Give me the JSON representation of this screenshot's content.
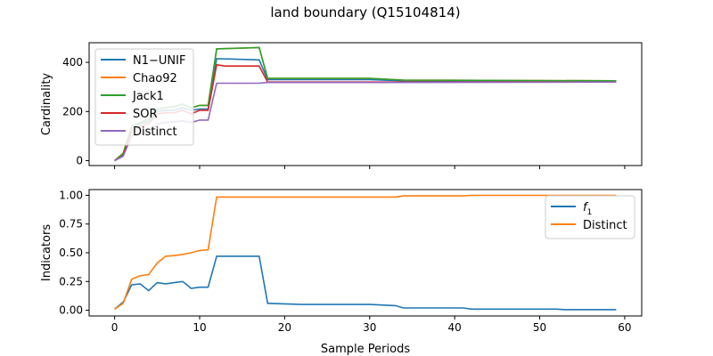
{
  "figure": {
    "title": "land boundary (Q15104814)",
    "xlabel": "Sample Periods"
  },
  "chart_data": [
    {
      "type": "line",
      "ylabel": "Cardinality",
      "xlim": [
        -3,
        62
      ],
      "ylim": [
        -20,
        480
      ],
      "xticks": [
        0,
        10,
        20,
        30,
        40,
        50,
        60
      ],
      "yticks": [
        0,
        200,
        400
      ],
      "show_x_tick_labels": false,
      "legend": "upper-left",
      "series": [
        {
          "name": "N1−UNIF",
          "color": "#1f77b4",
          "x": [
            0,
            1,
            2,
            3,
            4,
            5,
            6,
            7,
            8,
            9,
            10,
            11,
            12,
            17,
            18,
            22,
            30,
            34,
            59
          ],
          "y": [
            0,
            25,
            135,
            150,
            160,
            200,
            205,
            205,
            215,
            205,
            210,
            210,
            415,
            410,
            330,
            330,
            330,
            325,
            325
          ]
        },
        {
          "name": "Chao92",
          "color": "#ff7f0e",
          "x": [
            0,
            1,
            2,
            3,
            4,
            5,
            6,
            7,
            8,
            9,
            10,
            11,
            12,
            17,
            18,
            22,
            30,
            34,
            59
          ],
          "y": [
            0,
            30,
            140,
            155,
            170,
            210,
            215,
            220,
            230,
            215,
            225,
            225,
            455,
            460,
            335,
            335,
            335,
            328,
            325
          ]
        },
        {
          "name": "Jack1",
          "color": "#2ca02c",
          "x": [
            0,
            1,
            2,
            3,
            4,
            5,
            6,
            7,
            8,
            9,
            10,
            11,
            12,
            17,
            18,
            22,
            30,
            34,
            59
          ],
          "y": [
            0,
            30,
            140,
            155,
            170,
            210,
            215,
            220,
            230,
            215,
            225,
            225,
            455,
            460,
            335,
            335,
            335,
            328,
            325
          ]
        },
        {
          "name": "SOR",
          "color": "#d62728",
          "x": [
            0,
            1,
            2,
            3,
            4,
            5,
            6,
            7,
            8,
            9,
            10,
            11,
            12,
            13,
            17,
            18,
            59
          ],
          "y": [
            0,
            20,
            120,
            140,
            150,
            190,
            195,
            195,
            205,
            190,
            205,
            205,
            390,
            385,
            385,
            320,
            320
          ]
        },
        {
          "name": "Distinct",
          "color": "#9467bd",
          "x": [
            0,
            1,
            2,
            3,
            4,
            5,
            6,
            7,
            8,
            9,
            10,
            11,
            12,
            17,
            18,
            30,
            59
          ],
          "y": [
            0,
            18,
            100,
            110,
            115,
            150,
            155,
            158,
            162,
            155,
            165,
            165,
            315,
            315,
            318,
            318,
            320
          ]
        }
      ]
    },
    {
      "type": "line",
      "ylabel": "Indicators",
      "xlim": [
        -3,
        62
      ],
      "ylim": [
        -0.05,
        1.05
      ],
      "xticks": [
        0,
        10,
        20,
        30,
        40,
        50,
        60
      ],
      "yticks": [
        "0.00",
        "0.25",
        "0.50",
        "0.75",
        "1.00"
      ],
      "legend": "upper-right",
      "series": [
        {
          "name": "f",
          "subscript": "1",
          "color": "#1f77b4",
          "x": [
            0,
            1,
            2,
            3,
            4,
            5,
            6,
            7,
            8,
            9,
            10,
            11,
            12,
            17,
            18,
            22,
            30,
            33,
            34,
            41,
            42,
            52,
            53,
            59
          ],
          "y": [
            0.01,
            0.07,
            0.22,
            0.23,
            0.17,
            0.24,
            0.23,
            0.24,
            0.25,
            0.19,
            0.2,
            0.2,
            0.47,
            0.47,
            0.06,
            0.05,
            0.05,
            0.04,
            0.02,
            0.02,
            0.01,
            0.01,
            0.005,
            0.005
          ]
        },
        {
          "name": "Distinct",
          "color": "#ff7f0e",
          "x": [
            0,
            1,
            2,
            3,
            4,
            5,
            6,
            7,
            8,
            9,
            10,
            11,
            12,
            33,
            34,
            41,
            42,
            59
          ],
          "y": [
            0.01,
            0.06,
            0.27,
            0.3,
            0.31,
            0.41,
            0.47,
            0.475,
            0.485,
            0.5,
            0.52,
            0.525,
            0.985,
            0.985,
            0.995,
            0.995,
            1.0,
            1.0
          ]
        }
      ]
    }
  ]
}
